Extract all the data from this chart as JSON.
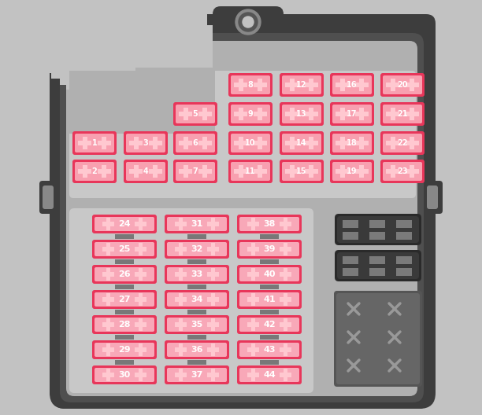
{
  "bg_color": "#c2c2c2",
  "housing_dark": "#3d3d3d",
  "housing_mid": "#4f4f4f",
  "housing_light": "#636363",
  "panel_bg": "#b0b0b0",
  "panel_inner": "#c0c0c0",
  "fuse_border_dark": "#e8365a",
  "fuse_fill_top": "#f07888",
  "fuse_fill_bottom_odd": "#f5a0b0",
  "fuse_fill_bottom_even": "#f07888",
  "fuse_cross": "#ffc8d0",
  "fuse_text": "#ffffff",
  "resistor_col": "#787878",
  "relay_dark": "#2a2a2a",
  "relay_mid": "#3a3a3a",
  "relay_pin": "#7a7a7a",
  "top_fuses": [
    {
      "n": 8,
      "col": 3,
      "row": 0
    },
    {
      "n": 12,
      "col": 4,
      "row": 0
    },
    {
      "n": 16,
      "col": 5,
      "row": 0
    },
    {
      "n": 20,
      "col": 6,
      "row": 0
    },
    {
      "n": 5,
      "col": 2,
      "row": 1
    },
    {
      "n": 9,
      "col": 3,
      "row": 1
    },
    {
      "n": 13,
      "col": 4,
      "row": 1
    },
    {
      "n": 17,
      "col": 5,
      "row": 1
    },
    {
      "n": 21,
      "col": 6,
      "row": 1
    },
    {
      "n": 1,
      "col": 0,
      "row": 2
    },
    {
      "n": 3,
      "col": 1,
      "row": 2
    },
    {
      "n": 6,
      "col": 2,
      "row": 2
    },
    {
      "n": 10,
      "col": 3,
      "row": 2
    },
    {
      "n": 14,
      "col": 4,
      "row": 2
    },
    {
      "n": 18,
      "col": 5,
      "row": 2
    },
    {
      "n": 22,
      "col": 6,
      "row": 2
    },
    {
      "n": 2,
      "col": 0,
      "row": 3
    },
    {
      "n": 4,
      "col": 1,
      "row": 3
    },
    {
      "n": 7,
      "col": 2,
      "row": 3
    },
    {
      "n": 11,
      "col": 3,
      "row": 3
    },
    {
      "n": 15,
      "col": 4,
      "row": 3
    },
    {
      "n": 19,
      "col": 5,
      "row": 3
    },
    {
      "n": 23,
      "col": 6,
      "row": 3
    }
  ],
  "bottom_fuses": [
    {
      "n": 24,
      "col": 0,
      "row": 0
    },
    {
      "n": 31,
      "col": 1,
      "row": 0
    },
    {
      "n": 38,
      "col": 2,
      "row": 0
    },
    {
      "n": 25,
      "col": 0,
      "row": 1
    },
    {
      "n": 32,
      "col": 1,
      "row": 1
    },
    {
      "n": 39,
      "col": 2,
      "row": 1
    },
    {
      "n": 26,
      "col": 0,
      "row": 2
    },
    {
      "n": 33,
      "col": 1,
      "row": 2
    },
    {
      "n": 40,
      "col": 2,
      "row": 2
    },
    {
      "n": 27,
      "col": 0,
      "row": 3
    },
    {
      "n": 34,
      "col": 1,
      "row": 3
    },
    {
      "n": 41,
      "col": 2,
      "row": 3
    },
    {
      "n": 28,
      "col": 0,
      "row": 4
    },
    {
      "n": 35,
      "col": 1,
      "row": 4
    },
    {
      "n": 42,
      "col": 2,
      "row": 4
    },
    {
      "n": 29,
      "col": 0,
      "row": 5
    },
    {
      "n": 36,
      "col": 1,
      "row": 5
    },
    {
      "n": 43,
      "col": 2,
      "row": 5
    },
    {
      "n": 30,
      "col": 0,
      "row": 6
    },
    {
      "n": 37,
      "col": 1,
      "row": 6
    },
    {
      "n": 44,
      "col": 2,
      "row": 6
    }
  ],
  "figsize": [
    6.12,
    5.28
  ],
  "dpi": 100
}
